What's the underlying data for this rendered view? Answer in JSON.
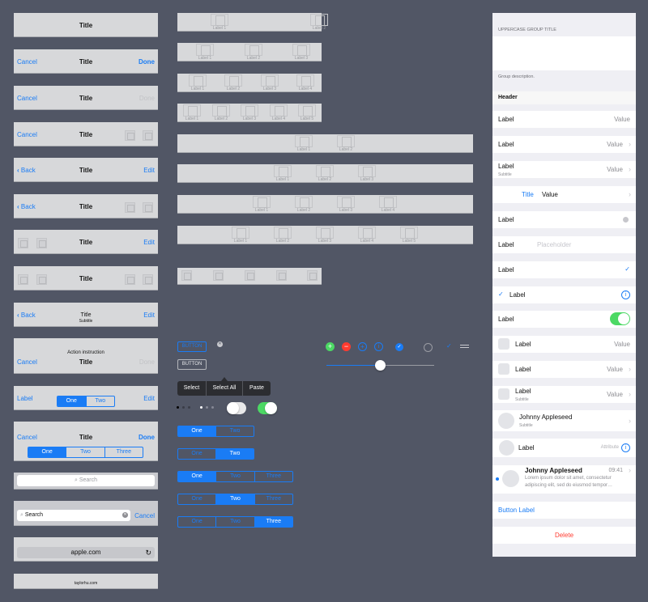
{
  "colors": {
    "background": "#515665",
    "accent": "#1a7cf5",
    "green": "#4cd964",
    "red": "#ff3b30",
    "bar": "#d7d8da"
  },
  "navbars": {
    "title": "Title",
    "cancel": "Cancel",
    "done": "Done",
    "back": "Back",
    "edit": "Edit",
    "subtitle": "Subtitle",
    "action_instruction": "Action instruction",
    "label": "Label",
    "seg2": [
      "One",
      "Two"
    ],
    "seg3": [
      "One",
      "Two",
      "Three"
    ],
    "search_placeholder": "Search",
    "search_value": "Search",
    "url": "apple.com",
    "footer_url": "taylorhu.com"
  },
  "tabbars": {
    "labels": [
      "Label 1",
      "Label 2",
      "Label 3",
      "Label 4",
      "Label 5"
    ]
  },
  "controls": {
    "button_label": "BUTTON",
    "button_label_2": "BUTTON",
    "menu": [
      "Select",
      "Select All",
      "Paste"
    ],
    "seg2": [
      "One",
      "Two"
    ],
    "seg3": [
      "One",
      "Two",
      "Three"
    ],
    "slider_value": 0.5,
    "toggle_off": false,
    "toggle_on": true,
    "icons": [
      "add-icon",
      "remove-icon",
      "add-outline-icon",
      "info-icon",
      "checkmark-circle-icon",
      "empty-circle-icon",
      "checkmark-icon",
      "reorder-icon"
    ]
  },
  "table": {
    "group_title": "UPPERCASE GROUP TITLE",
    "group_description": "Group description.",
    "header": "Header",
    "label": "Label",
    "value": "Value",
    "subtitle": "Subtitle",
    "title": "Title",
    "placeholder": "Placeholder",
    "attribute": "Attribute",
    "name": "Johnny Appleseed",
    "time": "09:41",
    "message": "Lorem ipsum dolor sit amet, consectetur adipiscing elit, sed do eiusmod tempor…",
    "button_label": "Button Label",
    "delete": "Delete"
  }
}
